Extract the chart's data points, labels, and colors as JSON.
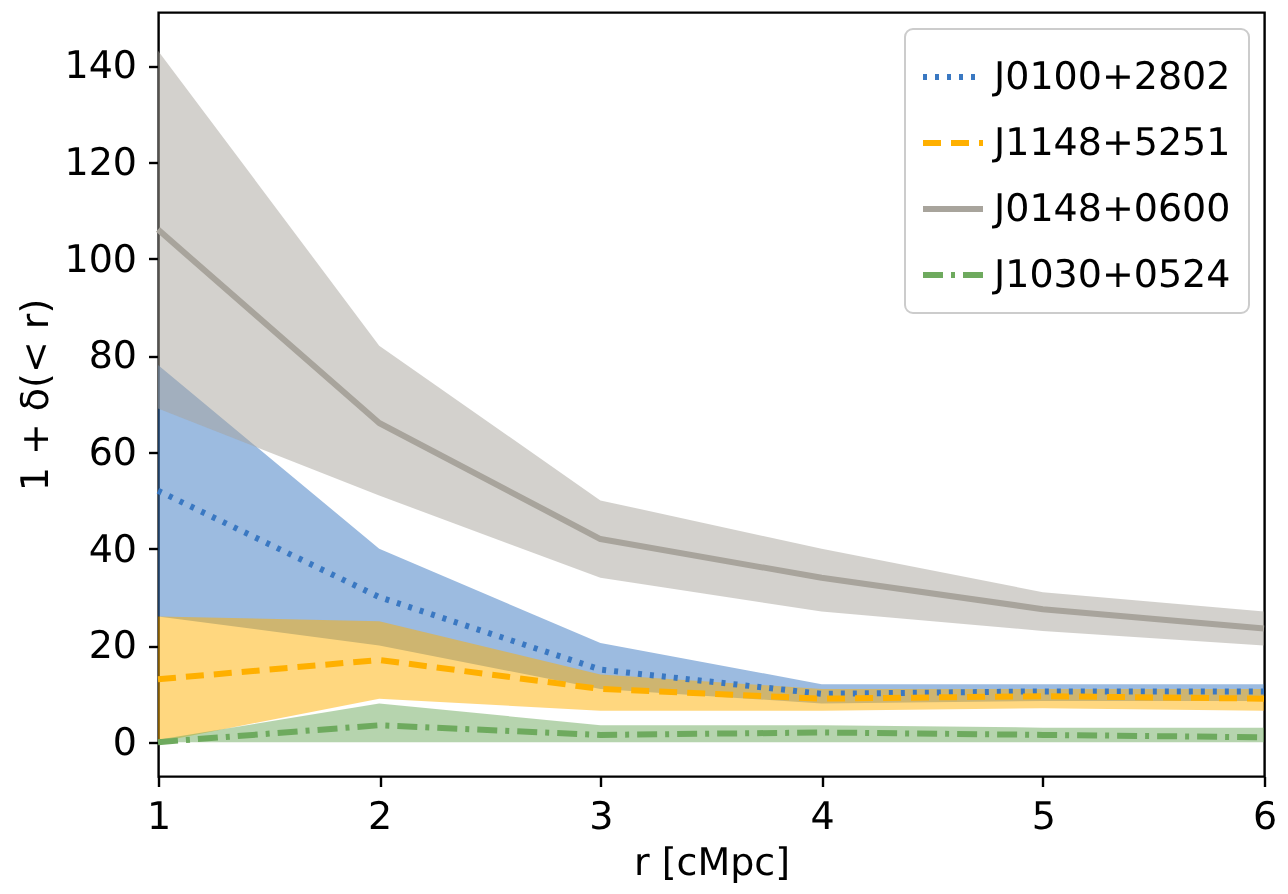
{
  "chart_data": {
    "type": "line",
    "xlabel": "r [cMpc]",
    "ylabel": "1 + δ(< r)",
    "x": [
      1,
      2,
      3,
      4,
      5,
      6
    ],
    "xlim": [
      1,
      6
    ],
    "xticks": [
      1,
      2,
      3,
      4,
      5,
      6
    ],
    "ylim": [
      -7,
      151
    ],
    "yticks": [
      0,
      20,
      40,
      60,
      80,
      100,
      120,
      140
    ],
    "grid": false,
    "legend": "top right",
    "marker": "none",
    "series": [
      {
        "name": "J0100+2802",
        "color": "#3a78c2",
        "line_style": "dotted",
        "values": [
          52,
          30,
          15,
          10,
          10.5,
          10.5
        ],
        "lower": [
          26,
          20,
          11,
          8,
          8.5,
          8.5
        ],
        "upper": [
          78,
          40,
          20.5,
          12,
          12,
          12
        ]
      },
      {
        "name": "J1148+5251",
        "color": "#ffb000",
        "line_style": "dashed",
        "values": [
          13,
          17,
          11,
          9,
          9.5,
          9
        ],
        "lower": [
          0,
          9,
          6.5,
          6.5,
          7,
          6.5
        ],
        "upper": [
          26,
          25,
          14,
          11,
          11,
          11
        ]
      },
      {
        "name": "J0148+0600",
        "color": "#a8a49c",
        "line_style": "solid",
        "values": [
          106,
          66,
          42,
          34,
          27.5,
          23.5
        ],
        "lower": [
          69,
          51,
          34,
          27,
          23,
          20
        ],
        "upper": [
          143,
          82,
          50,
          40,
          31,
          27
        ]
      },
      {
        "name": "J1030+0524",
        "color": "#6eaa5e",
        "line_style": "dashdot",
        "values": [
          0,
          3.5,
          1.5,
          2,
          1.5,
          1
        ],
        "lower": [
          0,
          0,
          0,
          0,
          0,
          0
        ],
        "upper": [
          0.5,
          8,
          3.5,
          3.5,
          3,
          3
        ]
      }
    ]
  }
}
